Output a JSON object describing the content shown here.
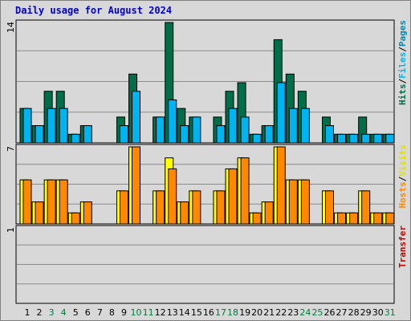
{
  "title": "Daily usage for August 2024",
  "colors": {
    "background": "#d8d8d8",
    "hits": "#006e48",
    "files": "#00b4f0",
    "visits": "#ffff00",
    "hosts": "#ff8800",
    "weekday_label": "#000000",
    "weekend_label": "#007a3d",
    "title": "#0000d0",
    "transfer_label": "#cc0000"
  },
  "chart_data": [
    {
      "type": "bar",
      "panel": "top",
      "side_label": [
        "Hits",
        "Files",
        "Pages"
      ],
      "side_label_colors": [
        "#006e48",
        "#00b4f0",
        "#008cb0"
      ],
      "y_tick_label": "14",
      "ylim": [
        0,
        14
      ],
      "x": [
        1,
        2,
        3,
        4,
        5,
        6,
        7,
        8,
        9,
        10,
        11,
        12,
        13,
        14,
        15,
        16,
        17,
        18,
        19,
        20,
        21,
        22,
        23,
        24,
        25,
        26,
        27,
        28,
        29,
        30,
        31
      ],
      "series": [
        {
          "name": "Hits",
          "values": [
            4,
            2,
            6,
            6,
            1,
            2,
            0,
            0,
            3,
            8,
            0,
            3,
            14,
            4,
            3,
            0,
            3,
            6,
            7,
            1,
            2,
            12,
            8,
            6,
            0,
            3,
            1,
            1,
            3,
            1,
            1
          ]
        },
        {
          "name": "Files",
          "values": [
            4,
            2,
            4,
            4,
            1,
            2,
            0,
            0,
            2,
            6,
            0,
            3,
            5,
            2,
            3,
            0,
            2,
            4,
            3,
            1,
            2,
            7,
            4,
            4,
            0,
            2,
            1,
            1,
            1,
            1,
            1
          ]
        }
      ]
    },
    {
      "type": "bar",
      "panel": "middle",
      "side_label": [
        "Hosts",
        "Visits"
      ],
      "side_label_colors": [
        "#ff8800",
        "#e0e000"
      ],
      "y_tick_label": "7",
      "ylim": [
        0,
        7
      ],
      "x": [
        1,
        2,
        3,
        4,
        5,
        6,
        7,
        8,
        9,
        10,
        11,
        12,
        13,
        14,
        15,
        16,
        17,
        18,
        19,
        20,
        21,
        22,
        23,
        24,
        25,
        26,
        27,
        28,
        29,
        30,
        31
      ],
      "series": [
        {
          "name": "Visits",
          "values": [
            4,
            2,
            4,
            4,
            1,
            2,
            0,
            0,
            3,
            7,
            0,
            3,
            6,
            2,
            3,
            0,
            3,
            5,
            6,
            1,
            2,
            7,
            4,
            4,
            0,
            3,
            1,
            1,
            3,
            1,
            1
          ]
        },
        {
          "name": "Hosts",
          "values": [
            4,
            2,
            4,
            4,
            1,
            2,
            0,
            0,
            3,
            7,
            0,
            3,
            5,
            2,
            3,
            0,
            3,
            5,
            6,
            1,
            2,
            7,
            4,
            4,
            0,
            3,
            1,
            1,
            3,
            1,
            1
          ]
        }
      ]
    },
    {
      "type": "bar",
      "panel": "bottom",
      "side_label": [
        "Transfer"
      ],
      "side_label_colors": [
        "#cc0000"
      ],
      "y_tick_label": "1",
      "ylim": [
        0,
        1
      ],
      "x": [
        1,
        2,
        3,
        4,
        5,
        6,
        7,
        8,
        9,
        10,
        11,
        12,
        13,
        14,
        15,
        16,
        17,
        18,
        19,
        20,
        21,
        22,
        23,
        24,
        25,
        26,
        27,
        28,
        29,
        30,
        31
      ],
      "series": [
        {
          "name": "Transfer",
          "values": [
            0,
            0,
            0,
            0,
            0,
            0,
            0,
            0,
            0,
            0,
            0,
            0,
            0,
            0,
            0,
            0,
            0,
            0,
            0,
            0,
            0,
            0,
            0,
            0,
            0,
            0,
            0,
            0,
            0,
            0,
            0
          ]
        }
      ]
    }
  ],
  "days": [
    {
      "label": "1",
      "weekend": false
    },
    {
      "label": "2",
      "weekend": false
    },
    {
      "label": "3",
      "weekend": true
    },
    {
      "label": "4",
      "weekend": true
    },
    {
      "label": "5",
      "weekend": false
    },
    {
      "label": "6",
      "weekend": false
    },
    {
      "label": "7",
      "weekend": false
    },
    {
      "label": "8",
      "weekend": false
    },
    {
      "label": "9",
      "weekend": false
    },
    {
      "label": "10",
      "weekend": true
    },
    {
      "label": "11",
      "weekend": true
    },
    {
      "label": "12",
      "weekend": false
    },
    {
      "label": "13",
      "weekend": false
    },
    {
      "label": "14",
      "weekend": false
    },
    {
      "label": "15",
      "weekend": false
    },
    {
      "label": "16",
      "weekend": false
    },
    {
      "label": "17",
      "weekend": true
    },
    {
      "label": "18",
      "weekend": true
    },
    {
      "label": "19",
      "weekend": false
    },
    {
      "label": "20",
      "weekend": false
    },
    {
      "label": "21",
      "weekend": false
    },
    {
      "label": "22",
      "weekend": false
    },
    {
      "label": "23",
      "weekend": false
    },
    {
      "label": "24",
      "weekend": true
    },
    {
      "label": "25",
      "weekend": true
    },
    {
      "label": "26",
      "weekend": false
    },
    {
      "label": "27",
      "weekend": false
    },
    {
      "label": "28",
      "weekend": false
    },
    {
      "label": "29",
      "weekend": false
    },
    {
      "label": "30",
      "weekend": false
    },
    {
      "label": "31",
      "weekend": true
    }
  ]
}
